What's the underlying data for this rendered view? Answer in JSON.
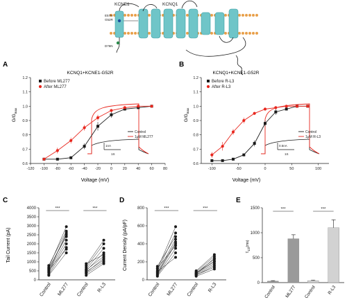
{
  "colors": {
    "red": "#e8271e",
    "black": "#1a1a1a",
    "helix": "#6fc5c8",
    "helix_dark": "#3f9ea3",
    "lipid": "#e8a04a",
    "bar_dark": "#9a9a9a",
    "bar_light": "#d2d2d2"
  },
  "diagram": {
    "kcne1_label": "KCNE1",
    "kcnq1_label": "KCNQ1",
    "site_a": "E57H",
    "site_b": "G52R",
    "site_c": "D76N"
  },
  "chart_data": [
    {
      "id": "A",
      "panel_label": "A",
      "type": "line",
      "title": "KCNQ1+KCNE1-G52R",
      "xlabel": "Voltage (mV)",
      "ylabel": "G/G",
      "ylabel_sub": "max",
      "xlim": [
        -120,
        80
      ],
      "ylim": [
        0.6,
        1.2
      ],
      "xticks": [
        "-120",
        "-100",
        "-80",
        "-60",
        "-40",
        "-20",
        "0",
        "20",
        "40",
        "60",
        "80"
      ],
      "yticks": [
        "0.6",
        "0.7",
        "0.8",
        "0.9",
        "1.0",
        "1.1",
        "1.2"
      ],
      "series": [
        {
          "name": "Before ML277",
          "color": "#1a1a1a",
          "x": [
            -100,
            -80,
            -60,
            -40,
            -20,
            0,
            20,
            40,
            60
          ],
          "y": [
            0.63,
            0.63,
            0.64,
            0.72,
            0.86,
            0.94,
            0.98,
            0.99,
            1.0
          ],
          "err": [
            0.0,
            0.0,
            0.01,
            0.02,
            0.03,
            0.02,
            0.01,
            0.0,
            0.0
          ]
        },
        {
          "name": "After ML277",
          "color": "#e8271e",
          "x": [
            -100,
            -80,
            -60,
            -40,
            -20,
            0,
            20,
            40,
            60
          ],
          "y": [
            0.63,
            0.69,
            0.76,
            0.85,
            0.92,
            0.97,
            0.99,
            1.0,
            1.0
          ],
          "err": [
            0.0,
            0.02,
            0.02,
            0.02,
            0.02,
            0.01,
            0.0,
            0.0,
            0.0
          ]
        }
      ],
      "inset": {
        "legend": [
          "Control",
          "1μM ML277"
        ],
        "scale_current": "1nA",
        "scale_time": "1S"
      }
    },
    {
      "id": "B",
      "panel_label": "B",
      "type": "line",
      "title": "KCNQ1+KCNE1-G52R",
      "xlabel": "Voltage (mV)",
      "ylabel": "G/G",
      "ylabel_sub": "max",
      "xlim": [
        -120,
        120
      ],
      "ylim": [
        0.6,
        1.2
      ],
      "xticks": [
        "-100",
        "-50",
        "0",
        "50",
        "100"
      ],
      "yticks": [
        "0.6",
        "0.7",
        "0.8",
        "0.9",
        "1.0",
        "1.1",
        "1.2"
      ],
      "series": [
        {
          "name": "Before R-L3",
          "color": "#1a1a1a",
          "x": [
            -100,
            -80,
            -60,
            -40,
            -20,
            0,
            20,
            40,
            60,
            80
          ],
          "y": [
            0.62,
            0.62,
            0.63,
            0.66,
            0.74,
            0.88,
            0.96,
            0.98,
            1.0,
            1.0
          ],
          "err": [
            0.0,
            0.0,
            0.0,
            0.01,
            0.02,
            0.02,
            0.02,
            0.01,
            0.0,
            0.0
          ]
        },
        {
          "name": "After R-L3",
          "color": "#e8271e",
          "x": [
            -100,
            -80,
            -60,
            -40,
            -20,
            0,
            20,
            40,
            60,
            80
          ],
          "y": [
            0.66,
            0.72,
            0.82,
            0.9,
            0.95,
            0.98,
            0.99,
            1.0,
            1.0,
            1.0
          ],
          "err": [
            0.02,
            0.03,
            0.02,
            0.02,
            0.01,
            0.01,
            0.0,
            0.0,
            0.0,
            0.0
          ]
        }
      ],
      "inset": {
        "legend": [
          "Control",
          "1μM R-L3"
        ],
        "scale_current": "0.5nA",
        "scale_time": "1S"
      }
    },
    {
      "id": "C",
      "panel_label": "C",
      "type": "scatter",
      "xlabel": "",
      "ylabel": "Tail Current (pA)",
      "ylim": [
        0,
        4000
      ],
      "yticks": [
        "0",
        "500",
        "1000",
        "1500",
        "2000",
        "2500",
        "3000",
        "3500",
        "4000"
      ],
      "categories": [
        "Control",
        "ML277",
        "Control",
        "R-L3"
      ],
      "significance": [
        "***",
        "***"
      ],
      "pairs_a": [
        [
          300,
          1800
        ],
        [
          500,
          2200
        ],
        [
          600,
          2500
        ],
        [
          700,
          2950
        ],
        [
          400,
          2000
        ],
        [
          800,
          2700
        ],
        [
          250,
          1500
        ],
        [
          650,
          2400
        ],
        [
          550,
          1700
        ],
        [
          450,
          2600
        ]
      ],
      "pairs_b": [
        [
          250,
          900
        ],
        [
          400,
          1200
        ],
        [
          500,
          1500
        ],
        [
          600,
          1750
        ],
        [
          700,
          2000
        ],
        [
          800,
          2200
        ],
        [
          350,
          1000
        ],
        [
          900,
          1400
        ],
        [
          450,
          1100
        ],
        [
          550,
          1300
        ]
      ]
    },
    {
      "id": "D",
      "panel_label": "D",
      "type": "scatter",
      "xlabel": "",
      "ylabel": "Current Density (pA/pF)",
      "ylim": [
        0,
        800
      ],
      "yticks": [
        "0",
        "200",
        "400",
        "600",
        "800"
      ],
      "categories": [
        "Control",
        "ML277",
        "Control",
        "R-L3"
      ],
      "significance": [
        "***",
        "***"
      ],
      "pairs_a": [
        [
          40,
          300
        ],
        [
          60,
          400
        ],
        [
          80,
          450
        ],
        [
          100,
          520
        ],
        [
          120,
          590
        ],
        [
          150,
          480
        ],
        [
          50,
          350
        ],
        [
          90,
          250
        ],
        [
          70,
          420
        ],
        [
          130,
          380
        ]
      ],
      "pairs_b": [
        [
          40,
          120
        ],
        [
          50,
          160
        ],
        [
          60,
          180
        ],
        [
          70,
          200
        ],
        [
          80,
          230
        ],
        [
          90,
          260
        ],
        [
          100,
          280
        ],
        [
          55,
          140
        ],
        [
          75,
          210
        ],
        [
          65,
          240
        ]
      ]
    },
    {
      "id": "E",
      "panel_label": "E",
      "type": "bar",
      "xlabel": "",
      "ylabel": "τ",
      "ylabel_sub": "1/2",
      "ylabel_tail": "(ms)",
      "ylim": [
        0,
        1500
      ],
      "yticks": [
        "0",
        "500",
        "1000",
        "1500"
      ],
      "categories": [
        "Control",
        "ML277",
        "Control",
        "R-L3"
      ],
      "values": [
        30,
        880,
        40,
        1100
      ],
      "errors": [
        10,
        80,
        10,
        160
      ],
      "colors": [
        "#9a9a9a",
        "#9a9a9a",
        "#d2d2d2",
        "#d2d2d2"
      ],
      "significance": [
        "***",
        "***"
      ]
    }
  ]
}
